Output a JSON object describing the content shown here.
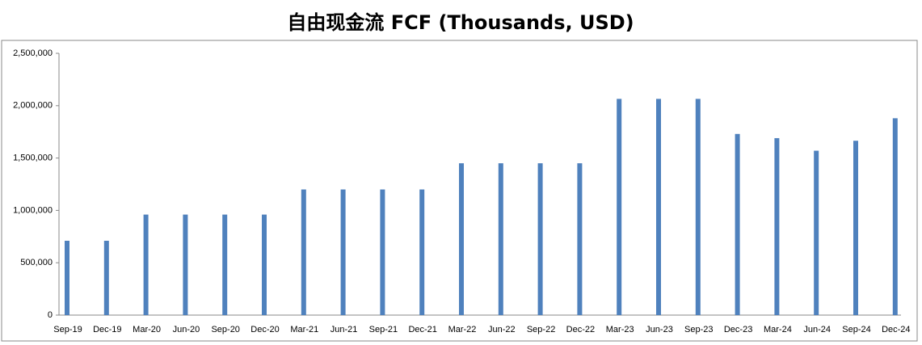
{
  "chart_data": {
    "type": "bar",
    "title": "自由现金流 FCF (Thousands, USD)",
    "categories": [
      "Sep-19",
      "Dec-19",
      "Mar-20",
      "Jun-20",
      "Sep-20",
      "Dec-20",
      "Mar-21",
      "Jun-21",
      "Sep-21",
      "Dec-21",
      "Mar-22",
      "Jun-22",
      "Sep-22",
      "Dec-22",
      "Mar-23",
      "Jun-23",
      "Sep-23",
      "Dec-23",
      "Mar-24",
      "Jun-24",
      "Sep-24",
      "Dec-24"
    ],
    "values": [
      710000,
      710000,
      960000,
      960000,
      960000,
      960000,
      1200000,
      1200000,
      1200000,
      1200000,
      1450000,
      1450000,
      1450000,
      1450000,
      2065000,
      2065000,
      2065000,
      1730000,
      1690000,
      1570000,
      1665000,
      1880000
    ],
    "color": "#4f81bd",
    "ylim": [
      0,
      2500000
    ],
    "yticks": [
      0,
      {
        "value": 500000,
        "label": "500,000"
      },
      {
        "value": 1000000,
        "label": "1,000,000"
      },
      {
        "value": 1500000,
        "label": "1,500,000"
      },
      {
        "value": 2000000,
        "label": "2,000,000"
      },
      {
        "value": 2500000,
        "label": "2,500,000"
      }
    ],
    "grid": false
  }
}
